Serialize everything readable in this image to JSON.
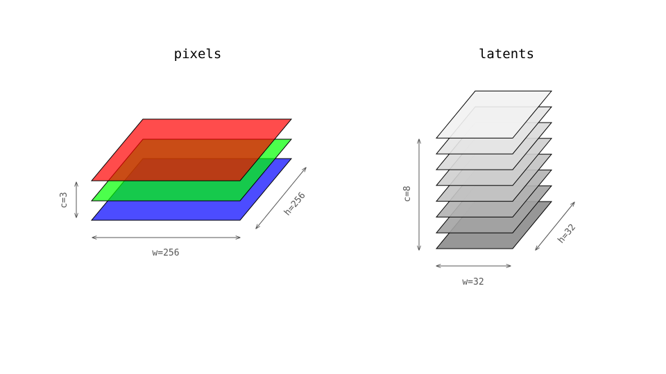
{
  "diagram": {
    "pixels": {
      "title": "pixels",
      "channels_label": "c=3",
      "width_label": "w=256",
      "height_label": "h=256",
      "layers": [
        {
          "name": "blue",
          "fill": "#0000ff",
          "opacity": 0.7
        },
        {
          "name": "green",
          "fill": "#00ff00",
          "opacity": 0.7
        },
        {
          "name": "red",
          "fill": "#ff0000",
          "opacity": 0.7
        }
      ]
    },
    "latents": {
      "title": "latents",
      "channels_label": "c=8",
      "width_label": "w=32",
      "height_label": "h=32",
      "layer_fills": [
        "#8c8c8c",
        "#a3a3a3",
        "#b3b3b3",
        "#c3c3c3",
        "#cfcfcf",
        "#dadada",
        "#e6e6e6",
        "#f2f2f2"
      ],
      "layer_opacity": 0.9
    }
  }
}
